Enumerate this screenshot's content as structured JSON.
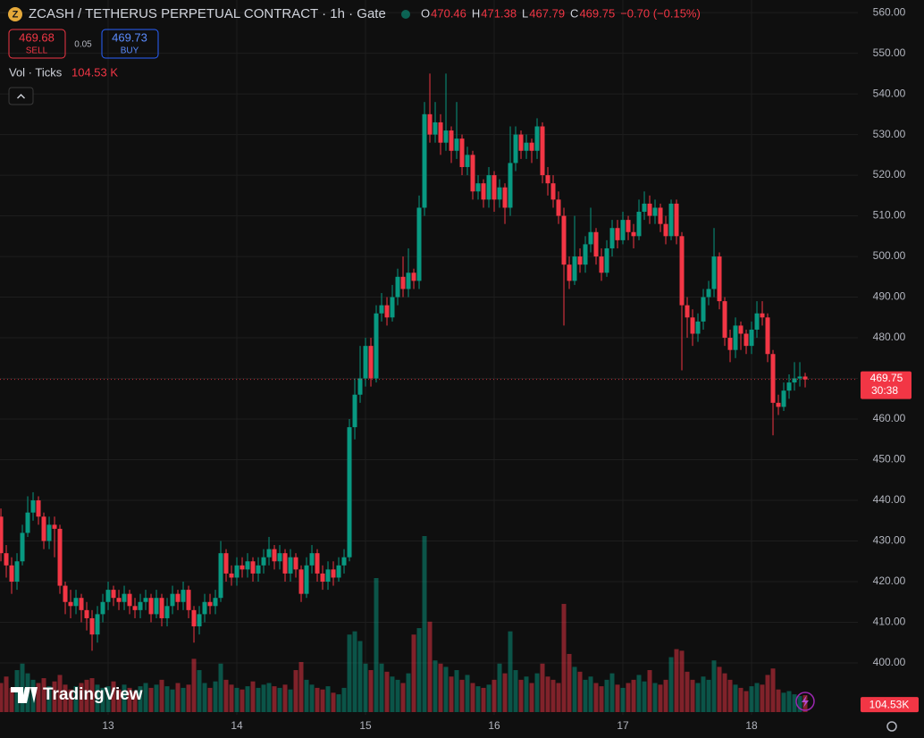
{
  "chart_data": {
    "type": "candlestick",
    "title": "ZCASH / TETHERUS PERPETUAL CONTRACT · 1h · Gate",
    "legend_labels": [
      "O",
      "H",
      "L",
      "C"
    ],
    "change_label": "−0.70 (−0.15%)",
    "sell": {
      "value": 469.68,
      "label": "SELL"
    },
    "spread": 0.05,
    "buy": {
      "value": 469.73,
      "label": "BUY"
    },
    "volume_title": "Vol · Ticks",
    "volume_label": "104.53 K",
    "volume_axis_label": "104.53K",
    "countdown": "30:38",
    "watermark": "TradingView",
    "colors": {
      "up": "#089981",
      "down": "#f23645"
    },
    "grid": true,
    "ylim": [
      387.25,
      563.1
    ],
    "yticks": [
      {
        "value": 400,
        "label": "400.00"
      },
      {
        "value": 410,
        "label": "410.00"
      },
      {
        "value": 420,
        "label": "420.00"
      },
      {
        "value": 430,
        "label": "430.00"
      },
      {
        "value": 440,
        "label": "440.00"
      },
      {
        "value": 450,
        "label": "450.00"
      },
      {
        "value": 460,
        "label": "460.00"
      },
      {
        "value": 470,
        "label": "470.00"
      },
      {
        "value": 480,
        "label": "480.00"
      },
      {
        "value": 490,
        "label": "490.00"
      },
      {
        "value": 500,
        "label": "500.00"
      },
      {
        "value": 510,
        "label": "510.00"
      },
      {
        "value": 520,
        "label": "520.00"
      },
      {
        "value": 530,
        "label": "530.00"
      },
      {
        "value": 540,
        "label": "540.00"
      },
      {
        "value": 550,
        "label": "550.00"
      },
      {
        "value": 560,
        "label": "560.00"
      }
    ],
    "xlim": [
      -0.17,
      159.83
    ],
    "xticks": [
      {
        "value": 20,
        "label": "13"
      },
      {
        "value": 44,
        "label": "14"
      },
      {
        "value": 68,
        "label": "15"
      },
      {
        "value": 92,
        "label": "16"
      },
      {
        "value": 116,
        "label": "17"
      },
      {
        "value": 140,
        "label": "18"
      }
    ],
    "candles": [
      [
        436,
        438,
        425,
        427
      ],
      [
        427,
        429,
        421,
        424
      ],
      [
        424,
        426,
        417,
        420
      ],
      [
        420,
        427,
        418,
        425
      ],
      [
        425,
        434,
        424,
        432
      ],
      [
        432,
        441,
        431,
        437
      ],
      [
        437,
        442,
        435,
        440
      ],
      [
        440,
        441,
        434,
        436
      ],
      [
        436,
        437,
        428,
        430
      ],
      [
        430,
        436,
        428,
        434
      ],
      [
        434,
        436,
        426,
        433
      ],
      [
        433,
        434,
        417,
        419
      ],
      [
        419,
        420,
        412,
        415
      ],
      [
        415,
        418,
        411,
        414
      ],
      [
        414,
        418,
        412,
        416
      ],
      [
        416,
        417,
        410,
        413
      ],
      [
        413,
        415,
        408,
        411
      ],
      [
        411,
        413,
        403,
        407
      ],
      [
        407,
        414,
        405,
        412
      ],
      [
        412,
        417,
        410,
        415
      ],
      [
        415,
        420,
        413,
        418
      ],
      [
        418,
        419,
        414,
        416
      ],
      [
        416,
        418,
        413,
        415
      ],
      [
        415,
        419,
        413,
        417
      ],
      [
        417,
        418,
        412,
        414
      ],
      [
        414,
        416,
        411,
        413
      ],
      [
        413,
        417,
        411,
        415
      ],
      [
        415,
        418,
        413,
        416
      ],
      [
        416,
        417,
        410,
        412
      ],
      [
        412,
        418,
        411,
        416
      ],
      [
        416,
        417,
        409,
        411
      ],
      [
        411,
        416,
        409,
        414
      ],
      [
        414,
        419,
        412,
        417
      ],
      [
        417,
        418,
        413,
        415
      ],
      [
        415,
        420,
        413,
        418
      ],
      [
        418,
        419,
        411,
        413
      ],
      [
        413,
        414,
        405,
        409
      ],
      [
        409,
        414,
        407,
        412
      ],
      [
        412,
        417,
        410,
        415
      ],
      [
        415,
        417,
        412,
        414
      ],
      [
        414,
        418,
        412,
        416
      ],
      [
        416,
        430,
        415,
        427
      ],
      [
        427,
        428,
        420,
        422
      ],
      [
        422,
        424,
        419,
        421
      ],
      [
        421,
        426,
        419,
        424
      ],
      [
        424,
        426,
        421,
        423
      ],
      [
        423,
        427,
        421,
        425
      ],
      [
        425,
        426,
        420,
        422
      ],
      [
        422,
        426,
        420,
        424
      ],
      [
        424,
        428,
        422,
        426
      ],
      [
        426,
        431,
        424,
        428
      ],
      [
        428,
        429,
        423,
        425
      ],
      [
        425,
        429,
        423,
        427
      ],
      [
        427,
        428,
        420,
        422
      ],
      [
        422,
        428,
        420,
        426
      ],
      [
        426,
        427,
        421,
        423
      ],
      [
        423,
        424,
        415,
        417
      ],
      [
        417,
        426,
        416,
        424
      ],
      [
        424,
        429,
        422,
        427
      ],
      [
        427,
        428,
        420,
        422
      ],
      [
        422,
        424,
        418,
        420
      ],
      [
        420,
        425,
        418,
        423
      ],
      [
        423,
        425,
        419,
        421
      ],
      [
        421,
        426,
        420,
        424
      ],
      [
        424,
        428,
        422,
        426
      ],
      [
        426,
        460,
        425,
        458
      ],
      [
        458,
        470,
        455,
        466
      ],
      [
        466,
        478,
        464,
        470
      ],
      [
        470,
        480,
        468,
        478
      ],
      [
        478,
        480,
        468,
        470
      ],
      [
        470,
        488,
        469,
        486
      ],
      [
        486,
        491,
        484,
        488
      ],
      [
        488,
        490,
        483,
        485
      ],
      [
        485,
        493,
        484,
        490
      ],
      [
        490,
        497,
        488,
        495
      ],
      [
        495,
        500,
        490,
        492
      ],
      [
        492,
        502,
        490,
        496
      ],
      [
        496,
        497,
        492,
        494
      ],
      [
        494,
        515,
        492,
        512
      ],
      [
        512,
        538,
        510,
        535
      ],
      [
        535,
        545,
        528,
        530
      ],
      [
        530,
        538,
        528,
        533
      ],
      [
        533,
        535,
        525,
        528
      ],
      [
        528,
        545,
        526,
        531
      ],
      [
        531,
        532,
        523,
        526
      ],
      [
        526,
        538,
        524,
        529
      ],
      [
        529,
        530,
        520,
        522
      ],
      [
        522,
        527,
        520,
        525
      ],
      [
        525,
        526,
        514,
        516
      ],
      [
        516,
        520,
        514,
        518
      ],
      [
        518,
        519,
        512,
        514
      ],
      [
        514,
        522,
        512,
        520
      ],
      [
        520,
        521,
        511,
        514
      ],
      [
        514,
        519,
        512,
        517
      ],
      [
        517,
        518,
        508,
        512
      ],
      [
        512,
        532,
        510,
        523
      ],
      [
        523,
        532,
        521,
        530
      ],
      [
        530,
        531,
        524,
        526
      ],
      [
        526,
        530,
        524,
        528
      ],
      [
        528,
        529,
        523,
        526
      ],
      [
        526,
        534,
        524,
        532
      ],
      [
        532,
        533,
        518,
        520
      ],
      [
        520,
        522,
        515,
        518
      ],
      [
        518,
        520,
        512,
        514
      ],
      [
        514,
        516,
        508,
        510
      ],
      [
        510,
        512,
        483,
        498
      ],
      [
        498,
        500,
        492,
        494
      ],
      [
        494,
        510,
        493,
        500
      ],
      [
        500,
        502,
        496,
        498
      ],
      [
        498,
        505,
        496,
        503
      ],
      [
        503,
        512,
        501,
        506
      ],
      [
        506,
        507,
        498,
        500
      ],
      [
        500,
        502,
        494,
        496
      ],
      [
        496,
        504,
        495,
        502
      ],
      [
        502,
        509,
        500,
        507
      ],
      [
        507,
        509,
        502,
        504
      ],
      [
        504,
        511,
        503,
        509
      ],
      [
        509,
        510,
        504,
        506
      ],
      [
        506,
        508,
        502,
        505
      ],
      [
        505,
        514,
        504,
        511
      ],
      [
        511,
        516,
        509,
        513
      ],
      [
        513,
        515,
        508,
        510
      ],
      [
        510,
        514,
        508,
        512
      ],
      [
        512,
        513,
        506,
        508
      ],
      [
        508,
        510,
        503,
        505
      ],
      [
        505,
        514,
        504,
        513
      ],
      [
        513,
        514,
        503,
        505
      ],
      [
        505,
        506,
        472,
        488
      ],
      [
        488,
        490,
        480,
        485
      ],
      [
        485,
        487,
        478,
        481
      ],
      [
        481,
        486,
        479,
        484
      ],
      [
        484,
        492,
        482,
        490
      ],
      [
        490,
        494,
        488,
        492
      ],
      [
        492,
        507,
        490,
        500
      ],
      [
        500,
        501,
        487,
        489
      ],
      [
        489,
        490,
        478,
        480
      ],
      [
        480,
        482,
        474,
        477
      ],
      [
        477,
        485,
        475,
        483
      ],
      [
        483,
        484,
        477,
        481
      ],
      [
        481,
        482,
        476,
        478
      ],
      [
        478,
        484,
        476,
        482
      ],
      [
        482,
        489,
        480,
        486
      ],
      [
        486,
        489,
        483,
        485
      ],
      [
        485,
        486,
        474,
        476
      ],
      [
        476,
        477,
        456,
        464
      ],
      [
        464,
        466,
        461,
        463
      ],
      [
        463,
        469,
        462,
        467
      ],
      [
        467,
        471,
        465,
        469
      ],
      [
        469,
        474,
        467,
        470
      ],
      [
        470,
        474,
        468,
        470.46
      ],
      [
        470.46,
        471.38,
        467.79,
        469.75
      ]
    ],
    "volumes": [
      180,
      220,
      150,
      260,
      300,
      240,
      200,
      180,
      210,
      160,
      190,
      230,
      170,
      140,
      160,
      180,
      200,
      210,
      170,
      150,
      160,
      190,
      140,
      170,
      150,
      130,
      160,
      180,
      150,
      170,
      200,
      160,
      140,
      180,
      150,
      170,
      330,
      260,
      180,
      150,
      190,
      300,
      200,
      170,
      150,
      140,
      160,
      190,
      150,
      170,
      180,
      160,
      150,
      170,
      140,
      260,
      310,
      200,
      170,
      150,
      140,
      160,
      120,
      110,
      150,
      480,
      500,
      440,
      300,
      260,
      830,
      300,
      250,
      220,
      200,
      180,
      240,
      480,
      520,
      1090,
      560,
      320,
      300,
      280,
      220,
      260,
      200,
      230,
      180,
      160,
      150,
      170,
      200,
      300,
      240,
      500,
      260,
      200,
      220,
      180,
      240,
      300,
      220,
      200,
      180,
      670,
      360,
      280,
      250,
      200,
      220,
      180,
      160,
      200,
      240,
      170,
      150,
      180,
      200,
      230,
      190,
      260,
      180,
      170,
      200,
      340,
      390,
      380,
      250,
      200,
      180,
      220,
      200,
      320,
      280,
      240,
      200,
      170,
      150,
      130,
      160,
      180,
      170,
      230,
      270,
      140,
      120,
      130,
      110,
      100,
      104.53
    ]
  }
}
